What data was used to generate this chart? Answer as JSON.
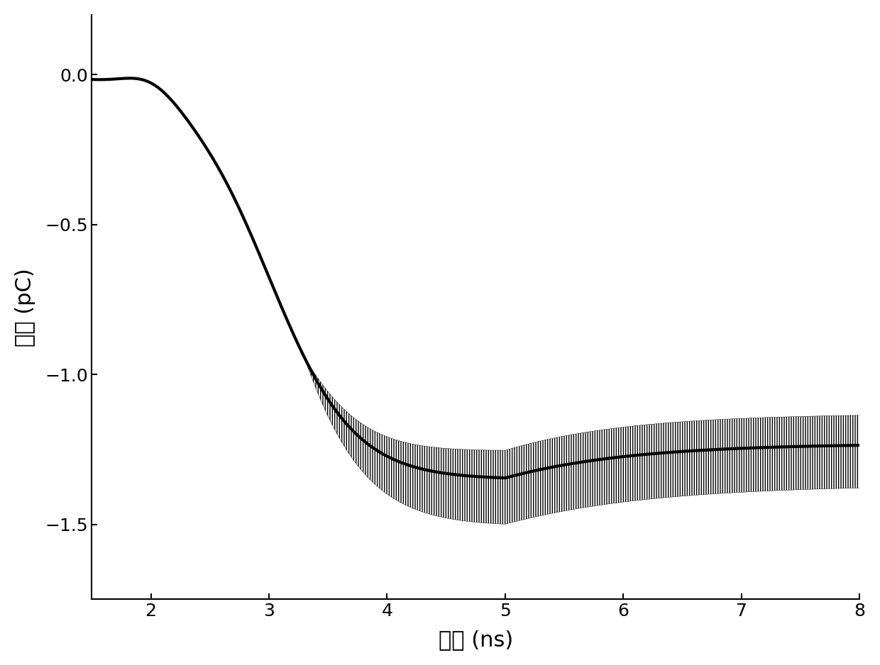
{
  "xlabel": "时间 (ns)",
  "ylabel": "电荷 (pC)",
  "xlim": [
    1.5,
    8.0
  ],
  "ylim": [
    -1.75,
    0.2
  ],
  "xticks": [
    2,
    3,
    4,
    5,
    6,
    7,
    8
  ],
  "yticks": [
    0.0,
    -0.5,
    -1.0,
    -1.5
  ],
  "background_color": "#ffffff",
  "line_color": "#000000",
  "fill_color": "#000000",
  "fill_alpha": 0.15,
  "line_width": 3.0,
  "font_size_label": 22,
  "font_size_tick": 18
}
